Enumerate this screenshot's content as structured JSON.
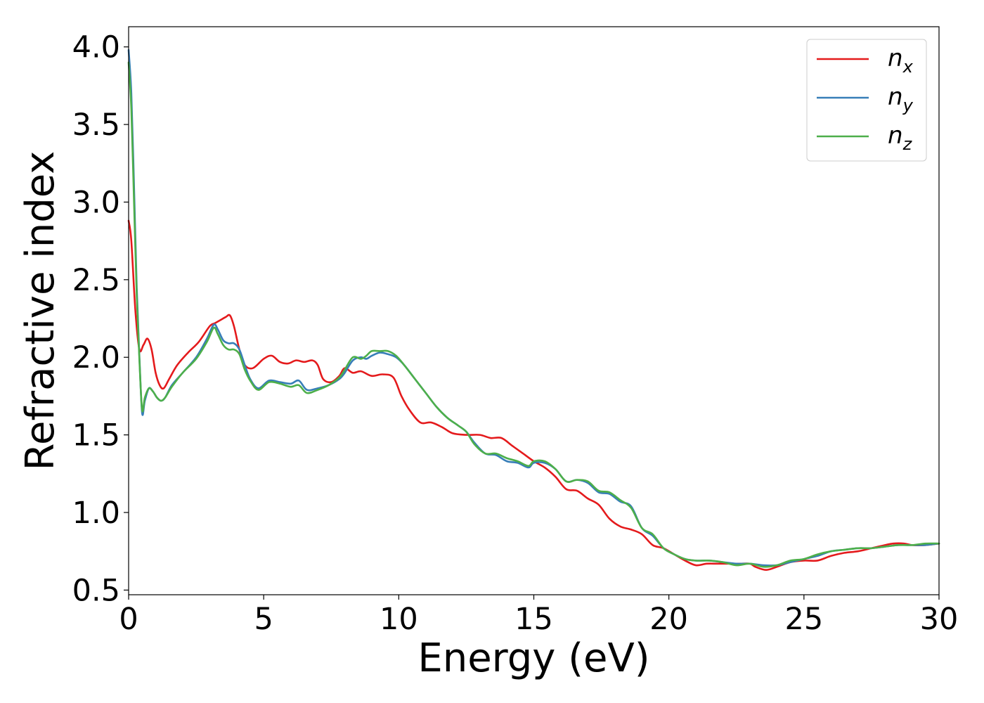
{
  "chart_data": {
    "type": "line",
    "title": "",
    "xlabel": "Energy (eV)",
    "ylabel": "Refractive index",
    "xlim": [
      0,
      30
    ],
    "ylim": [
      0.47,
      4.13
    ],
    "xticks": [
      "0",
      "5",
      "10",
      "15",
      "20",
      "25",
      "30"
    ],
    "yticks": [
      "0.5",
      "1.0",
      "1.5",
      "2.0",
      "2.5",
      "3.0",
      "3.5",
      "4.0"
    ],
    "grid": false,
    "legend_position": "top-right",
    "series": [
      {
        "name": "n",
        "subscript": "x",
        "color": "#e41a1c",
        "x": [
          0,
          0.1,
          0.25,
          0.4,
          0.55,
          0.7,
          0.85,
          1.0,
          1.15,
          1.3,
          1.5,
          1.8,
          2.2,
          2.6,
          3.0,
          3.2,
          3.4,
          3.6,
          3.75,
          3.9,
          4.1,
          4.3,
          4.6,
          5.0,
          5.3,
          5.6,
          5.9,
          6.2,
          6.5,
          6.8,
          7.0,
          7.2,
          7.5,
          7.8,
          8.0,
          8.3,
          8.6,
          9.0,
          9.4,
          9.8,
          10.1,
          10.4,
          10.8,
          11.2,
          11.6,
          12.0,
          12.5,
          13.0,
          13.4,
          13.8,
          14.2,
          14.6,
          15.0,
          15.4,
          15.8,
          16.2,
          16.6,
          17.0,
          17.4,
          17.8,
          18.2,
          18.6,
          19.0,
          19.4,
          19.8,
          20.2,
          20.6,
          21.0,
          21.4,
          21.8,
          22.2,
          22.6,
          23.0,
          23.2,
          23.6,
          24.0,
          24.5,
          25.0,
          25.5,
          26.0,
          26.5,
          27.0,
          27.5,
          28.0,
          28.3,
          28.7,
          29.0,
          29.5,
          30.0
        ],
        "values": [
          2.88,
          2.75,
          2.3,
          2.05,
          2.08,
          2.12,
          2.05,
          1.9,
          1.82,
          1.8,
          1.86,
          1.95,
          2.03,
          2.1,
          2.2,
          2.22,
          2.24,
          2.26,
          2.27,
          2.2,
          2.05,
          1.95,
          1.93,
          1.99,
          2.01,
          1.97,
          1.96,
          1.98,
          1.97,
          1.98,
          1.95,
          1.86,
          1.84,
          1.88,
          1.93,
          1.9,
          1.91,
          1.88,
          1.89,
          1.87,
          1.75,
          1.66,
          1.58,
          1.58,
          1.55,
          1.51,
          1.5,
          1.5,
          1.48,
          1.48,
          1.43,
          1.38,
          1.33,
          1.29,
          1.23,
          1.15,
          1.14,
          1.09,
          1.05,
          0.96,
          0.91,
          0.89,
          0.86,
          0.79,
          0.77,
          0.73,
          0.69,
          0.66,
          0.67,
          0.67,
          0.67,
          0.67,
          0.67,
          0.65,
          0.63,
          0.65,
          0.68,
          0.69,
          0.69,
          0.72,
          0.74,
          0.75,
          0.77,
          0.79,
          0.8,
          0.8,
          0.79,
          0.79,
          0.8
        ]
      },
      {
        "name": "n",
        "subscript": "y",
        "color": "#377eb8",
        "x": [
          0,
          0.1,
          0.2,
          0.3,
          0.4,
          0.5,
          0.6,
          0.75,
          0.9,
          1.05,
          1.2,
          1.35,
          1.6,
          2.0,
          2.5,
          2.9,
          3.15,
          3.3,
          3.5,
          3.7,
          3.9,
          4.1,
          4.3,
          4.5,
          4.8,
          5.2,
          5.6,
          6.0,
          6.3,
          6.6,
          7.0,
          7.4,
          7.8,
          8.0,
          8.3,
          8.6,
          8.8,
          9.0,
          9.3,
          9.6,
          9.9,
          10.2,
          10.6,
          11.0,
          11.4,
          11.8,
          12.2,
          12.5,
          12.8,
          13.2,
          13.6,
          14.0,
          14.4,
          14.8,
          15.0,
          15.4,
          15.8,
          16.2,
          16.6,
          17.0,
          17.4,
          17.8,
          18.2,
          18.6,
          19.0,
          19.4,
          19.8,
          20.2,
          20.6,
          21.0,
          21.5,
          22.0,
          22.5,
          23.0,
          23.5,
          24.0,
          24.5,
          25.0,
          25.5,
          26.0,
          26.5,
          27.0,
          27.5,
          28.0,
          28.5,
          29.0,
          29.5,
          30.0
        ],
        "values": [
          3.98,
          3.7,
          3.1,
          2.45,
          2.0,
          1.64,
          1.72,
          1.8,
          1.78,
          1.74,
          1.72,
          1.74,
          1.82,
          1.9,
          2.0,
          2.12,
          2.21,
          2.18,
          2.11,
          2.09,
          2.09,
          2.05,
          1.95,
          1.86,
          1.8,
          1.85,
          1.84,
          1.83,
          1.85,
          1.79,
          1.8,
          1.82,
          1.86,
          1.9,
          1.98,
          2.0,
          1.99,
          2.01,
          2.03,
          2.02,
          2.0,
          1.95,
          1.86,
          1.77,
          1.68,
          1.61,
          1.56,
          1.52,
          1.45,
          1.38,
          1.37,
          1.33,
          1.32,
          1.29,
          1.32,
          1.32,
          1.28,
          1.2,
          1.21,
          1.19,
          1.13,
          1.12,
          1.07,
          1.04,
          0.9,
          0.85,
          0.77,
          0.73,
          0.7,
          0.69,
          0.69,
          0.68,
          0.67,
          0.67,
          0.66,
          0.66,
          0.68,
          0.7,
          0.72,
          0.75,
          0.76,
          0.77,
          0.77,
          0.78,
          0.79,
          0.79,
          0.79,
          0.8
        ]
      },
      {
        "name": "n",
        "subscript": "z",
        "color": "#4daf4a",
        "x": [
          0,
          0.1,
          0.2,
          0.3,
          0.4,
          0.5,
          0.6,
          0.75,
          0.9,
          1.05,
          1.2,
          1.35,
          1.6,
          2.0,
          2.5,
          2.9,
          3.15,
          3.3,
          3.5,
          3.7,
          3.9,
          4.1,
          4.3,
          4.5,
          4.8,
          5.2,
          5.6,
          6.0,
          6.3,
          6.6,
          7.0,
          7.4,
          7.8,
          8.0,
          8.3,
          8.6,
          8.8,
          9.0,
          9.3,
          9.6,
          9.9,
          10.2,
          10.6,
          11.0,
          11.4,
          11.8,
          12.2,
          12.5,
          12.8,
          13.2,
          13.6,
          14.0,
          14.4,
          14.8,
          15.0,
          15.4,
          15.8,
          16.2,
          16.6,
          17.0,
          17.4,
          17.8,
          18.2,
          18.6,
          19.0,
          19.4,
          19.8,
          20.2,
          20.6,
          21.0,
          21.5,
          22.0,
          22.5,
          23.0,
          23.5,
          24.0,
          24.5,
          25.0,
          25.5,
          26.0,
          26.5,
          27.0,
          27.5,
          28.0,
          28.5,
          29.0,
          29.5,
          30.0
        ],
        "values": [
          3.9,
          3.6,
          3.0,
          2.4,
          1.98,
          1.66,
          1.74,
          1.8,
          1.78,
          1.74,
          1.72,
          1.74,
          1.81,
          1.9,
          1.99,
          2.1,
          2.19,
          2.15,
          2.08,
          2.05,
          2.05,
          2.02,
          1.92,
          1.85,
          1.79,
          1.84,
          1.83,
          1.81,
          1.82,
          1.77,
          1.79,
          1.82,
          1.87,
          1.92,
          2.0,
          1.99,
          2.01,
          2.04,
          2.04,
          2.04,
          2.01,
          1.95,
          1.86,
          1.77,
          1.68,
          1.61,
          1.56,
          1.52,
          1.44,
          1.38,
          1.38,
          1.35,
          1.33,
          1.3,
          1.33,
          1.33,
          1.28,
          1.2,
          1.21,
          1.2,
          1.14,
          1.13,
          1.08,
          1.03,
          0.9,
          0.86,
          0.77,
          0.73,
          0.7,
          0.69,
          0.69,
          0.68,
          0.66,
          0.67,
          0.65,
          0.66,
          0.69,
          0.7,
          0.73,
          0.75,
          0.76,
          0.77,
          0.77,
          0.78,
          0.79,
          0.79,
          0.8,
          0.8
        ]
      }
    ]
  }
}
